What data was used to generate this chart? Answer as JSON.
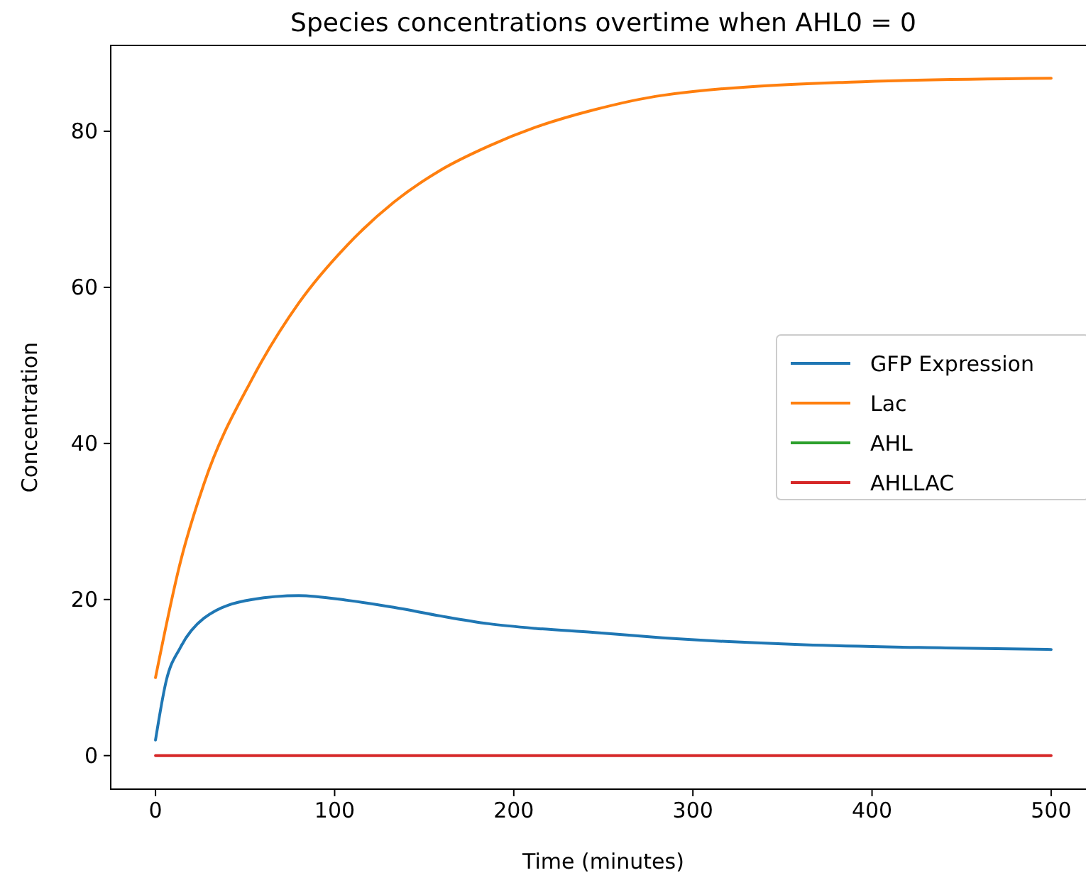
{
  "chart_data": {
    "type": "line",
    "title": "Species concentrations overtime when AHL0 = 0",
    "xlabel": "Time (minutes)",
    "ylabel": "Concentration",
    "xlim": [
      -25,
      525
    ],
    "ylim": [
      -4.3,
      91
    ],
    "xticks": [
      0,
      100,
      200,
      300,
      400,
      500
    ],
    "yticks": [
      0,
      20,
      40,
      60,
      80
    ],
    "legend": "right",
    "grid": false,
    "line_style": "solid",
    "marker": "none",
    "series": [
      {
        "name": "GFP Expression",
        "color": "#1f77b4",
        "x": [
          0,
          6,
          14,
          27,
          54,
          80,
          107,
          133,
          159,
          186,
          212,
          244,
          283,
          362,
          441,
          500
        ],
        "values": [
          2,
          9.6,
          13.9,
          17.6,
          20.0,
          20.5,
          19.9,
          19.0,
          17.9,
          16.9,
          16.3,
          15.8,
          15.1,
          14.2,
          13.8,
          13.6
        ]
      },
      {
        "name": "Lac",
        "color": "#ff7f0e",
        "x": [
          0,
          14,
          27,
          54,
          80,
          107,
          133,
          159,
          186,
          212,
          244,
          283,
          388,
          500
        ],
        "values": [
          10,
          24.9,
          34.8,
          48.3,
          58,
          65.4,
          70.9,
          75,
          78.1,
          80.5,
          82.7,
          84.6,
          86.3,
          86.8
        ]
      },
      {
        "name": "AHL",
        "color": "#2ca02c"
      },
      {
        "name": "AHLLAC",
        "color": "#d62728",
        "x": [
          0,
          500
        ],
        "values": [
          0,
          0
        ]
      }
    ]
  }
}
